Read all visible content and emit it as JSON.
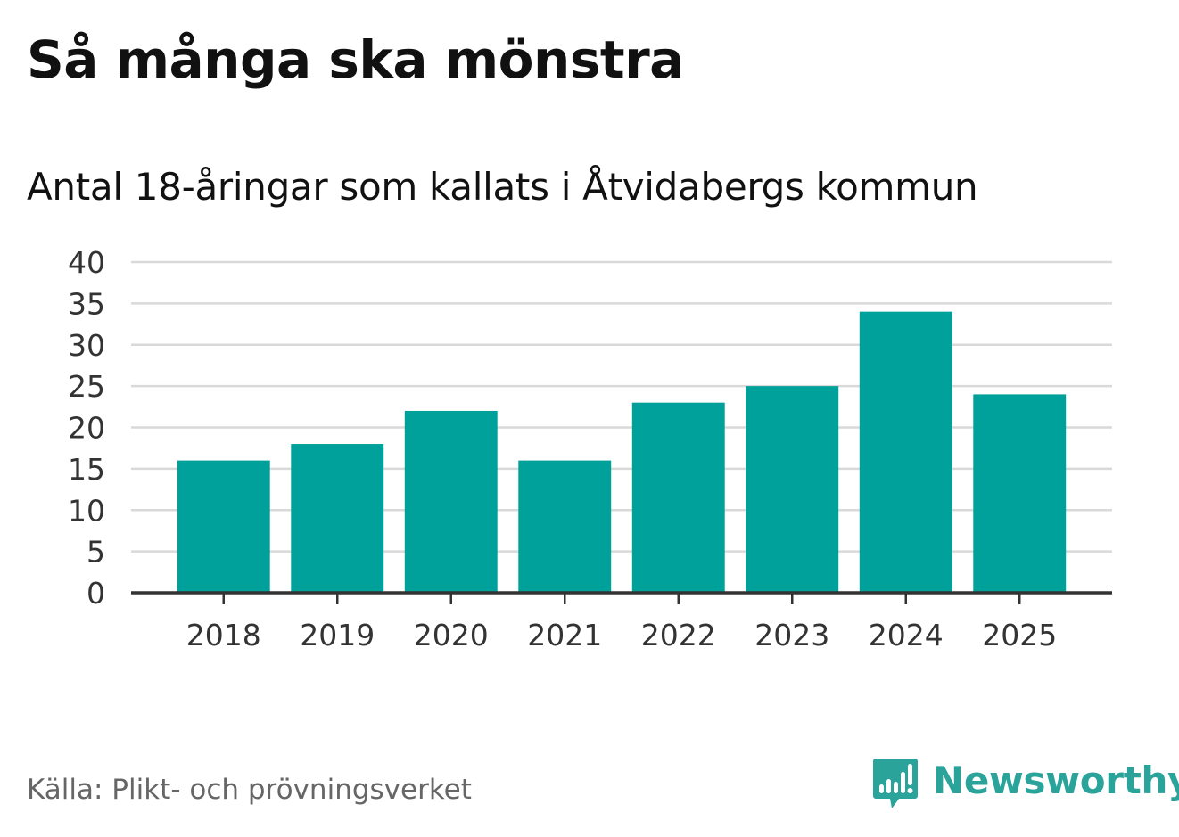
{
  "title": "Så många ska mönstra",
  "subtitle": "Antal 18-åringar som kallats i Åtvidabergs kommun",
  "source": "Källa: Plikt- och prövningsverket",
  "brand": {
    "name": "Newsworthy",
    "logo_icon": "newsworthy-chart-logo-icon",
    "color": "#2aa39b"
  },
  "colors": {
    "bar": "#00a19a",
    "grid": "#d9d9d9",
    "axis": "#333333",
    "source_text": "#666666"
  },
  "chart_data": {
    "type": "bar",
    "title": "Så många ska mönstra",
    "subtitle": "Antal 18-åringar som kallats i Åtvidabergs kommun",
    "xlabel": "",
    "ylabel": "",
    "categories": [
      "2018",
      "2019",
      "2020",
      "2021",
      "2022",
      "2023",
      "2024",
      "2025"
    ],
    "values": [
      16,
      18,
      22,
      16,
      23,
      25,
      34,
      24
    ],
    "ylim": [
      0,
      40
    ],
    "yticks": [
      0,
      5,
      10,
      15,
      20,
      25,
      30,
      35,
      40
    ],
    "grid": true,
    "legend": "none"
  }
}
